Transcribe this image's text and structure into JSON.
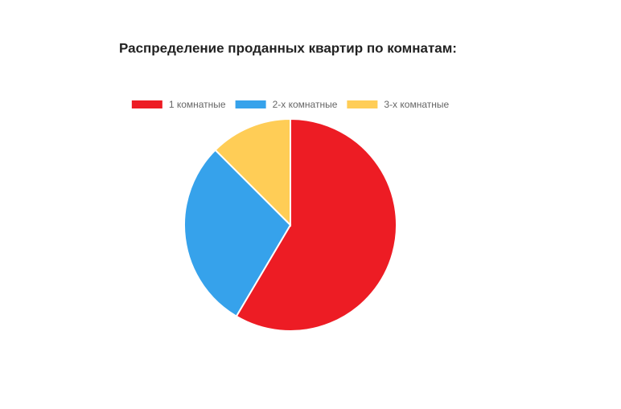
{
  "chart_data": {
    "type": "pie",
    "title": "Распределение проданных квартир по комнатам:",
    "categories": [
      "1 комнатные",
      "2-х комнатные",
      "3-х комнатные"
    ],
    "values": [
      58.5,
      29,
      12.5
    ],
    "colors": [
      "#ed1c24",
      "#36a2eb",
      "#ffcd56"
    ]
  }
}
